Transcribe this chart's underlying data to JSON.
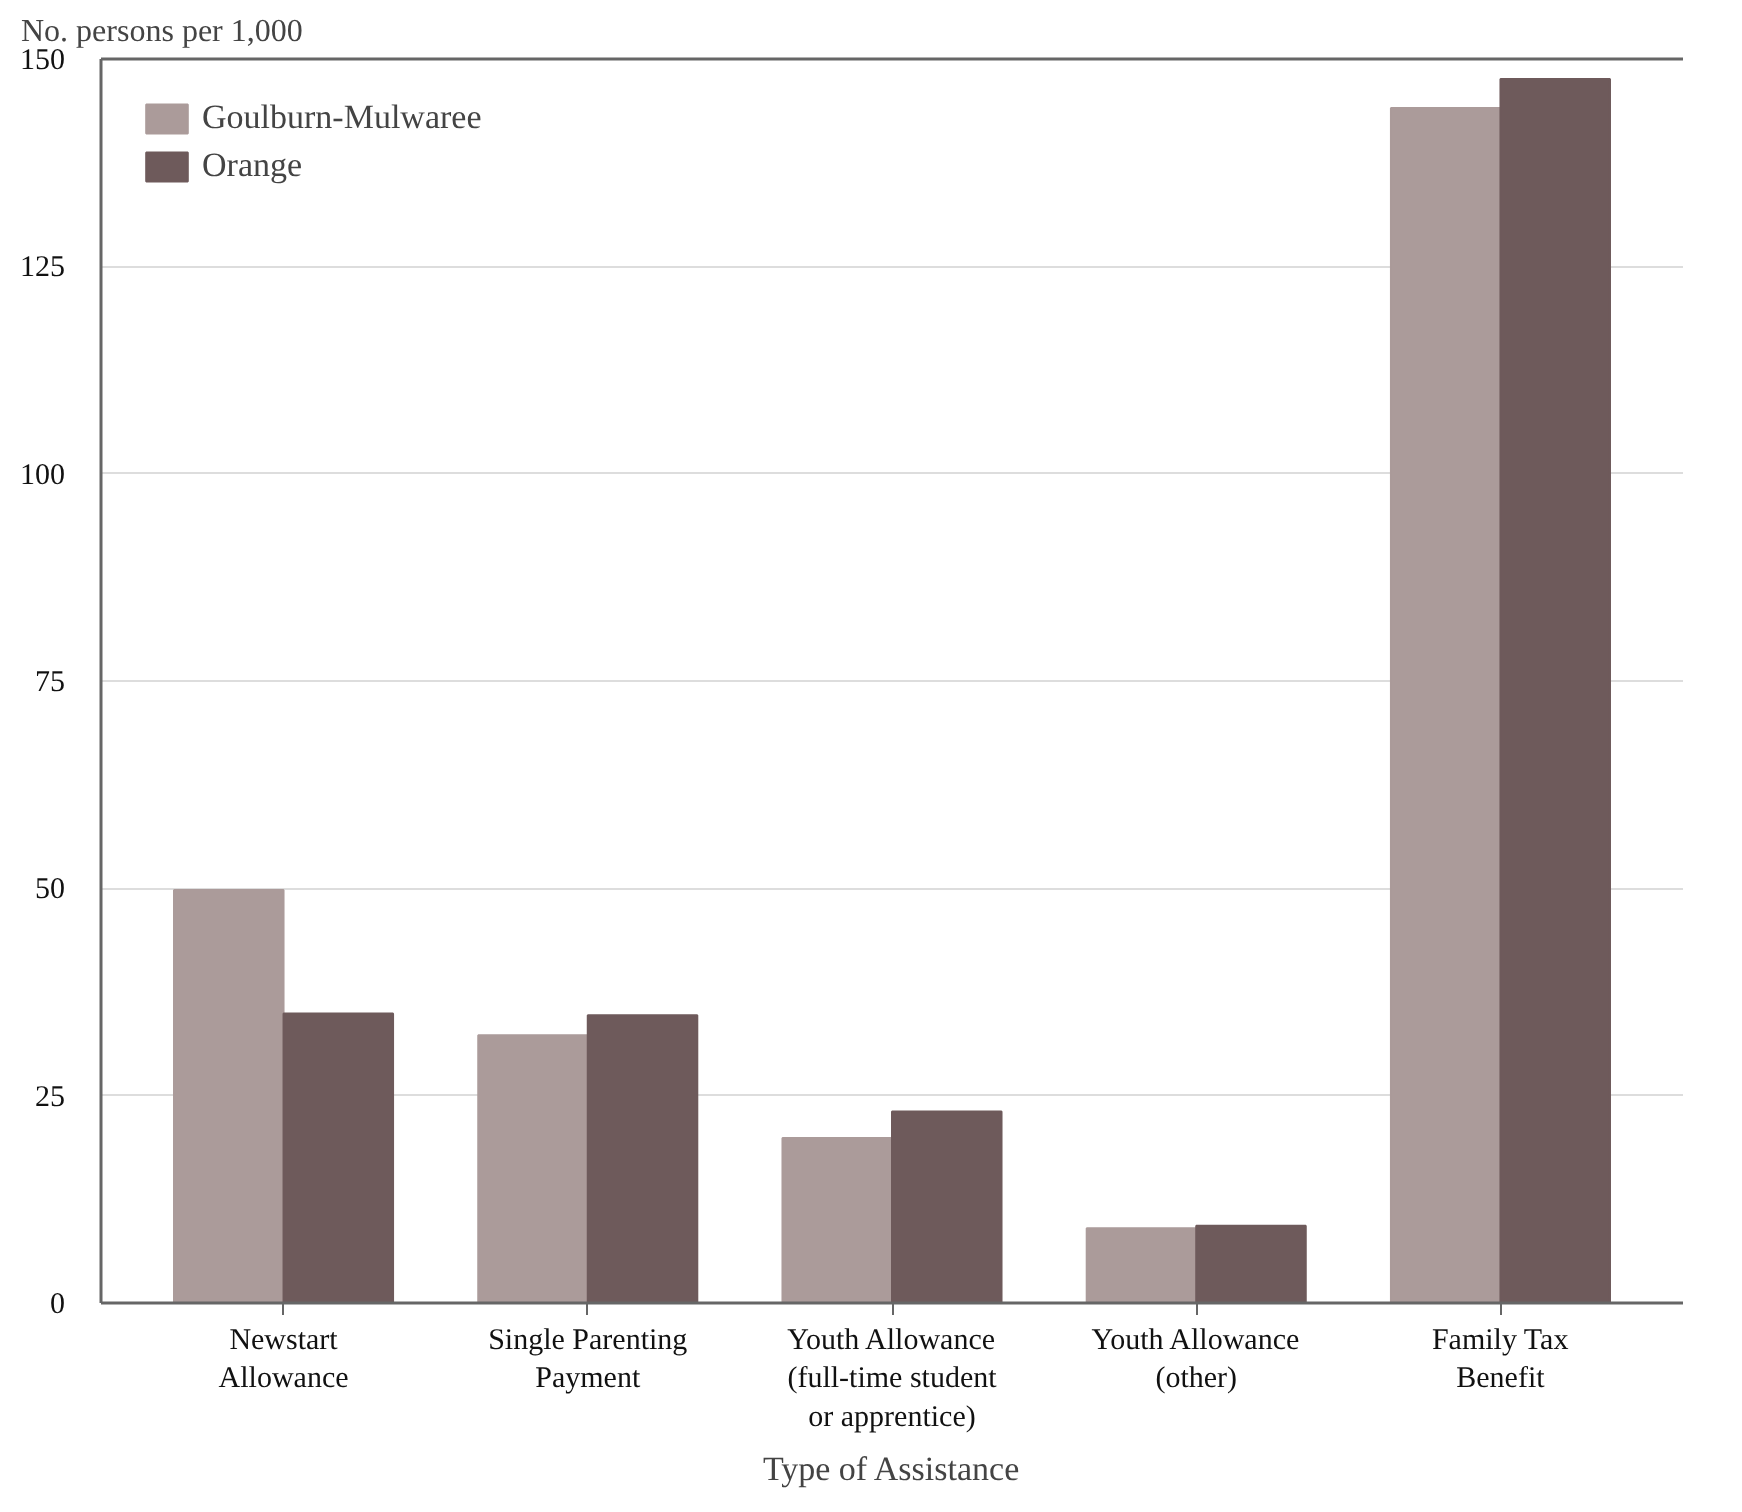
{
  "chart_data": {
    "type": "bar",
    "ylabel": "No. persons per 1,000",
    "xlabel": "Type of Assistance",
    "categories": [
      "Newstart\nAllowance",
      "Single Parenting\nPayment",
      "Youth Allowance\n(full-time student\nor apprentice)",
      "Youth Allowance\n(other)",
      "Family Tax\nBenefit"
    ],
    "series": [
      {
        "name": "Goulburn-Mulwaree",
        "color": "#ab9b9a",
        "values": [
          49.8,
          32.3,
          19.9,
          9.0,
          144.1
        ]
      },
      {
        "name": "Orange",
        "color": "#6e5a5b",
        "values": [
          34.9,
          34.7,
          23.1,
          9.3,
          147.6
        ]
      }
    ],
    "ylim": [
      0,
      150
    ],
    "yticks": [
      0,
      25,
      50,
      75,
      100,
      125,
      150
    ],
    "grid": "y",
    "legend": "top left"
  }
}
